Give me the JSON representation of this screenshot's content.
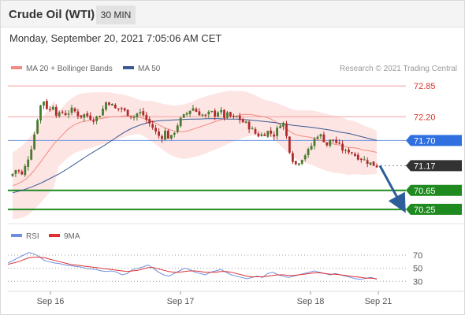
{
  "header": {
    "title": "Crude Oil (WTI)",
    "timeframe": "30 MIN"
  },
  "timestamp": "Monday, September 20, 2021 7:05:06 AM CET",
  "credit": "Research © 2021 Trading Central",
  "colors": {
    "ma20": "#f28b82",
    "bb_fill": "#fde0df",
    "ma50": "#3a5a94",
    "up": "#4a7a30",
    "down": "#b02a2a",
    "rsi": "#6d8ee0",
    "rsi_ma": "#e03030",
    "blue_label": "#2f6fe0",
    "green_label": "#1f8a1f",
    "dark_label": "#333333",
    "red_text": "#d9342b",
    "arrow": "#2d5e9a"
  },
  "chart_data": [
    {
      "type": "candlestick",
      "legend": [
        {
          "label": "MA 20 + Bollinger Bands",
          "color": "#f28b82"
        },
        {
          "label": "MA 50",
          "color": "#3a5a94"
        }
      ],
      "legend_position": "top-left",
      "x_ticks": [
        "Sep 16",
        "Sep 17",
        "Sep 18",
        "Sep 21"
      ],
      "y_range": [
        70.05,
        73.0
      ],
      "levels": [
        {
          "value": 72.85,
          "label": "72.85",
          "style": "red-text"
        },
        {
          "value": 72.2,
          "label": "72.20",
          "style": "red-text"
        },
        {
          "value": 71.7,
          "label": "71.70",
          "style": "blue-box"
        },
        {
          "value": 71.17,
          "label": "71.17",
          "style": "dark-box"
        },
        {
          "value": 70.65,
          "label": "70.65",
          "style": "green-box"
        },
        {
          "value": 70.25,
          "label": "70.25",
          "style": "green-box"
        }
      ],
      "close_path": [
        71.0,
        71.12,
        70.95,
        71.2,
        71.5,
        71.9,
        72.4,
        72.55,
        72.3,
        72.45,
        72.2,
        72.3,
        72.25,
        72.35,
        72.3,
        72.2,
        72.25,
        72.2,
        72.15,
        72.2,
        72.35,
        72.55,
        72.45,
        72.35,
        72.4,
        72.3,
        72.25,
        72.2,
        72.3,
        72.25,
        72.1,
        72.0,
        71.85,
        71.75,
        71.9,
        71.7,
        71.9,
        72.1,
        72.2,
        72.3,
        72.4,
        72.3,
        72.25,
        72.2,
        72.3,
        72.25,
        72.35,
        72.2,
        72.25,
        72.15,
        72.2,
        72.1,
        72.05,
        71.95,
        71.85,
        71.8,
        71.85,
        71.9,
        71.8,
        71.95,
        72.15,
        71.75,
        71.35,
        71.2,
        71.3,
        71.4,
        71.5,
        71.7,
        71.85,
        71.75,
        71.6,
        71.75,
        71.65,
        71.55,
        71.45,
        71.5,
        71.4,
        71.35,
        71.3,
        71.25,
        71.2,
        71.17
      ],
      "ma20_path": [
        70.75,
        70.8,
        70.9,
        71.05,
        71.25,
        71.45,
        71.65,
        71.8,
        71.95,
        72.05,
        72.1,
        72.12,
        72.15,
        72.17,
        72.2,
        72.2,
        72.22,
        72.22,
        72.2,
        72.15,
        72.1,
        72.02,
        71.95,
        71.9,
        71.88,
        71.9,
        71.95,
        72.0,
        72.05,
        72.1,
        72.15,
        72.2,
        72.22,
        72.25,
        72.25,
        72.22,
        72.2,
        72.15,
        72.05,
        71.95,
        71.85,
        71.8,
        71.78,
        71.75,
        71.7,
        71.65,
        71.62,
        71.6,
        71.55,
        71.55,
        71.5,
        71.48,
        71.45
      ],
      "ma50_path": [
        70.6,
        70.65,
        70.72,
        70.8,
        70.9,
        71.0,
        71.12,
        71.25,
        71.38,
        71.5,
        71.62,
        71.75,
        71.88,
        71.98,
        72.05,
        72.1,
        72.12,
        72.13,
        72.14,
        72.15,
        72.15,
        72.16,
        72.16,
        72.15,
        72.15,
        72.14,
        72.12,
        72.1,
        72.08,
        72.05,
        72.02,
        72.0,
        71.98,
        71.95,
        71.92,
        71.88,
        71.85,
        71.8,
        71.75,
        71.7
      ],
      "arrow": {
        "from": 71.17,
        "to": 70.25
      }
    },
    {
      "type": "line",
      "legend": [
        {
          "label": "RSI",
          "color": "#6d8ee0"
        },
        {
          "label": "9MA",
          "color": "#e03030"
        }
      ],
      "y_ticks": [
        "70",
        "50",
        "30"
      ],
      "y_range": [
        22,
        82
      ],
      "rsi": [
        58,
        62,
        66,
        70,
        74,
        72,
        68,
        62,
        60,
        58,
        57,
        55,
        54,
        53,
        52,
        50,
        49,
        48,
        46,
        45,
        46,
        44,
        40,
        42,
        48,
        50,
        52,
        55,
        50,
        44,
        40,
        38,
        42,
        46,
        50,
        48,
        44,
        42,
        40,
        44,
        46,
        48,
        44,
        40,
        38,
        36,
        34,
        36,
        38,
        36,
        42,
        44,
        40,
        38,
        36,
        38,
        40,
        42,
        44,
        46,
        44,
        42,
        40,
        42,
        40,
        38,
        36,
        34,
        33,
        35,
        36,
        33
      ],
      "rsi_ma": [
        56,
        58,
        60,
        63,
        66,
        67,
        67,
        66,
        64,
        62,
        60,
        58,
        56,
        55,
        54,
        53,
        52,
        51,
        50,
        49,
        48,
        47,
        46,
        45,
        46,
        47,
        49,
        51,
        51,
        49,
        47,
        45,
        44,
        44,
        45,
        46,
        46,
        45,
        44,
        44,
        44,
        45,
        45,
        44,
        42,
        40,
        38,
        37,
        37,
        37,
        38,
        39,
        40,
        40,
        39,
        39,
        40,
        41,
        42,
        43,
        43,
        42,
        41,
        41,
        40,
        39,
        38,
        37,
        36,
        35,
        35,
        34
      ]
    }
  ]
}
